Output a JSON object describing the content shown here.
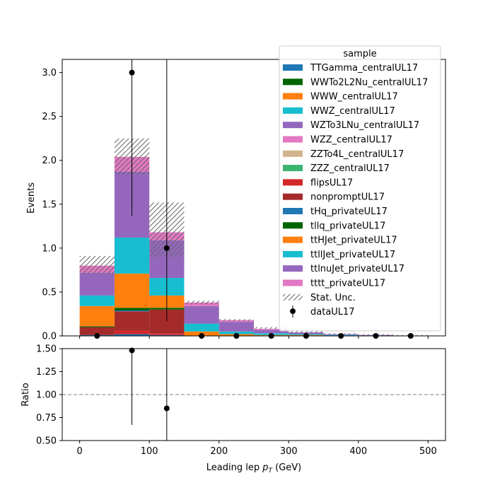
{
  "chart_data": [
    {
      "type": "bar",
      "stacked": true,
      "ylabel": "Events",
      "ylim": [
        0,
        3.15
      ],
      "y_ticks": [
        0.0,
        0.5,
        1.0,
        1.5,
        2.0,
        2.5,
        3.0
      ],
      "y_tick_labels": [
        "0.0",
        "0.5",
        "1.0",
        "1.5",
        "2.0",
        "2.5",
        "3.0"
      ],
      "xlim": [
        -25,
        525
      ],
      "bin_edges": [
        0,
        50,
        100,
        150,
        200,
        250,
        300,
        350,
        400,
        450,
        500
      ],
      "legend_title": "sample",
      "legend_position": "upper right",
      "series": [
        {
          "name": "TTGamma_centralUL17",
          "color": "#1f77b4",
          "values": [
            0.01,
            0.02,
            0.01,
            0.0,
            0.0,
            0.0,
            0.0,
            0.0,
            0.0,
            0.0
          ]
        },
        {
          "name": "WWTo2L2Nu_centralUL17",
          "color": "#006400",
          "values": [
            0.0,
            0.0,
            0.0,
            0.0,
            0.0,
            0.0,
            0.0,
            0.0,
            0.0,
            0.0
          ]
        },
        {
          "name": "WWW_centralUL17",
          "color": "#ff7f0e",
          "values": [
            0.0,
            0.0,
            0.0,
            0.0,
            0.0,
            0.0,
            0.0,
            0.0,
            0.0,
            0.0
          ]
        },
        {
          "name": "WWZ_centralUL17",
          "color": "#17becf",
          "values": [
            0.0,
            0.0,
            0.0,
            0.0,
            0.0,
            0.0,
            0.0,
            0.0,
            0.0,
            0.0
          ]
        },
        {
          "name": "WZTo3LNu_centralUL17",
          "color": "#9467bd",
          "values": [
            0.0,
            0.0,
            0.0,
            0.0,
            0.0,
            0.0,
            0.0,
            0.0,
            0.0,
            0.0
          ]
        },
        {
          "name": "WZZ_centralUL17",
          "color": "#e377c2",
          "values": [
            0.0,
            0.0,
            0.0,
            0.0,
            0.0,
            0.0,
            0.0,
            0.0,
            0.0,
            0.0
          ]
        },
        {
          "name": "ZZTo4L_centralUL17",
          "color": "#d2b48c",
          "values": [
            0.0,
            0.0,
            0.0,
            0.0,
            0.0,
            0.0,
            0.0,
            0.0,
            0.0,
            0.0
          ]
        },
        {
          "name": "ZZZ_centralUL17",
          "color": "#3cb371",
          "values": [
            0.0,
            0.0,
            0.0,
            0.0,
            0.0,
            0.0,
            0.0,
            0.0,
            0.0,
            0.0
          ]
        },
        {
          "name": "flipsUL17",
          "color": "#d62728",
          "values": [
            0.0,
            0.04,
            0.02,
            0.0,
            0.0,
            0.0,
            0.0,
            0.0,
            0.0,
            0.0
          ]
        },
        {
          "name": "nonpromptUL17",
          "color": "#a52a2a",
          "values": [
            0.09,
            0.22,
            0.27,
            0.0,
            0.0,
            0.0,
            0.0,
            0.0,
            0.0,
            0.0
          ]
        },
        {
          "name": "tHq_privateUL17",
          "color": "#1f77b4",
          "values": [
            0.0,
            0.01,
            0.0,
            0.0,
            0.0,
            0.0,
            0.0,
            0.0,
            0.0,
            0.0
          ]
        },
        {
          "name": "tllq_privateUL17",
          "color": "#006400",
          "values": [
            0.01,
            0.03,
            0.02,
            0.0,
            0.0,
            0.0,
            0.0,
            0.0,
            0.0,
            0.0
          ]
        },
        {
          "name": "ttHJet_privateUL17",
          "color": "#ff7f0e",
          "values": [
            0.23,
            0.39,
            0.14,
            0.05,
            0.02,
            0.01,
            0.01,
            0.0,
            0.0,
            0.0
          ]
        },
        {
          "name": "ttllJet_privateUL17",
          "color": "#17becf",
          "values": [
            0.12,
            0.41,
            0.2,
            0.09,
            0.03,
            0.02,
            0.01,
            0.01,
            0.0,
            0.0
          ]
        },
        {
          "name": "ttlnuJet_privateUL17",
          "color": "#9467bd",
          "values": [
            0.26,
            0.75,
            0.43,
            0.2,
            0.11,
            0.04,
            0.02,
            0.01,
            0.01,
            0.0
          ]
        },
        {
          "name": "tttt_privateUL17",
          "color": "#e377c2",
          "values": [
            0.08,
            0.17,
            0.09,
            0.04,
            0.02,
            0.01,
            0.0,
            0.0,
            0.0,
            0.0
          ]
        }
      ],
      "stat_unc": {
        "name": "Stat. Unc.",
        "low": [
          0.71,
          1.84,
          0.9,
          0.36,
          0.17,
          0.08,
          0.03,
          0.02,
          0.01,
          0.0
        ],
        "high": [
          0.91,
          2.25,
          1.52,
          0.4,
          0.19,
          0.1,
          0.06,
          0.03,
          0.02,
          0.01
        ]
      },
      "data": {
        "name": "dataUL17",
        "x": [
          25,
          75,
          125,
          175,
          225,
          275,
          325,
          375,
          425,
          475
        ],
        "y": [
          0,
          3,
          1,
          0,
          0,
          0,
          0,
          0,
          0,
          0
        ],
        "yerr_low": [
          0,
          1.63,
          0.83,
          0,
          0,
          0,
          0,
          0,
          0,
          0
        ],
        "yerr_high": [
          0,
          2.37,
          2.3,
          0,
          0,
          0,
          0,
          0,
          0,
          0
        ]
      }
    },
    {
      "type": "scatter",
      "ylabel": "Ratio",
      "xlabel": "Leading lep $p_T$ (GeV)",
      "xlabel_main": "Leading lep ",
      "xlabel_sym": "p",
      "xlabel_sub": "T",
      "xlabel_unit": " (GeV)",
      "xlim": [
        -25,
        525
      ],
      "ylim": [
        0.5,
        1.5
      ],
      "x_ticks": [
        0,
        100,
        200,
        300,
        400,
        500
      ],
      "x_tick_labels": [
        "0",
        "100",
        "200",
        "300",
        "400",
        "500"
      ],
      "y_ticks": [
        0.5,
        0.75,
        1.0,
        1.25,
        1.5
      ],
      "y_tick_labels": [
        "0.50",
        "0.75",
        "1.00",
        "1.25",
        "1.50"
      ],
      "reference_line": 1.0,
      "points": {
        "x": [
          75,
          125
        ],
        "y": [
          1.48,
          0.85
        ],
        "yerr_low": [
          0.81,
          0.85
        ],
        "yerr_high": [
          1.2,
          2.3
        ]
      }
    }
  ]
}
